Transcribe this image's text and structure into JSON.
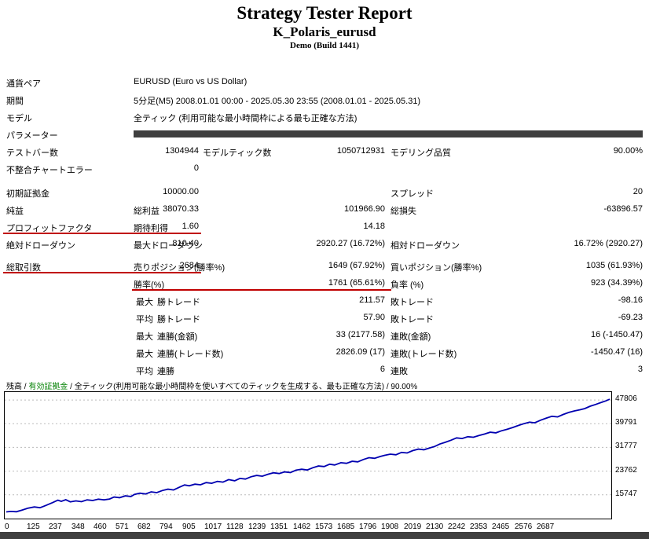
{
  "colors": {
    "underline": "#c00000",
    "balance_line": "#0000b0",
    "equity_legend": "#008000",
    "dark_bar": "#3f3f3f",
    "grid": "#bbbbbb"
  },
  "header": {
    "title": "Strategy Tester Report",
    "symbol": "K_Polaris_eurusd",
    "build": "Demo (Build 1441)"
  },
  "info": {
    "rows": [
      {
        "label": "通貨ペア",
        "value": "EURUSD (Euro vs US Dollar)"
      },
      {
        "label": "期間",
        "value": "5分足(M5) 2008.01.01 00:00 - 2025.05.30 23:55 (2008.01.01 - 2025.05.31)"
      },
      {
        "label": "モデル",
        "value": "全ティック (利用可能な最小時間枠による最も正確な方法)"
      },
      {
        "label": "パラメーター",
        "value": ""
      }
    ]
  },
  "stats": {
    "test_bars": {
      "label": "テストバー数",
      "value": "1304944"
    },
    "model_ticks": {
      "label": "モデルティック数",
      "value": "1050712931"
    },
    "modeling_quality": {
      "label": "モデリング品質",
      "value": "90.00%"
    },
    "mismatch_errors": {
      "label": "不整合チャートエラー",
      "value": "0"
    },
    "initial_deposit": {
      "label": "初期証拠金",
      "value": "10000.00"
    },
    "spread": {
      "label": "スプレッド",
      "value": "20"
    },
    "net_profit": {
      "label": "純益",
      "value": "38070.33"
    },
    "gross_profit": {
      "label": "総利益",
      "value": "101966.90"
    },
    "gross_loss": {
      "label": "総損失",
      "value": "-63896.57"
    },
    "profit_factor": {
      "label": "プロフィットファクタ",
      "value": "1.60"
    },
    "expected_payoff": {
      "label": "期待利得",
      "value": "14.18"
    },
    "absolute_drawdown": {
      "label": "絶対ドローダウン",
      "value": "810.40"
    },
    "maximal_drawdown": {
      "label": "最大ドローダウン",
      "value": "2920.27 (16.72%)"
    },
    "relative_drawdown": {
      "label": "相対ドローダウン",
      "value": "16.72% (2920.27)"
    },
    "total_trades": {
      "label": "総取引数",
      "value": "2684"
    },
    "short_positions": {
      "label": "売りポジション(勝率%)",
      "value": "1649 (67.92%)"
    },
    "long_positions": {
      "label": "買いポジション(勝率%)",
      "value": "1035 (61.93%)"
    },
    "profit_trades": {
      "label": "勝率(%)",
      "value": "1761 (65.61%)"
    },
    "loss_trades": {
      "label": "負率 (%)",
      "value": "923 (34.39%)"
    },
    "largest": {
      "label": "最大",
      "win_label": "勝トレード",
      "win": "211.57",
      "loss_label": "敗トレード",
      "loss": "-98.16"
    },
    "average": {
      "label": "平均",
      "win_label": "勝トレード",
      "win": "57.90",
      "loss_label": "敗トレード",
      "loss": "-69.23"
    },
    "max_consec_money": {
      "label": "最大",
      "win_label": "連勝(金額)",
      "win": "33 (2177.58)",
      "loss_label": "連敗(金額)",
      "loss": "16 (-1450.47)"
    },
    "max_consec_count": {
      "label": "最大",
      "win_label": "連勝(トレード数)",
      "win": "2826.09 (17)",
      "loss_label": "連敗(トレード数)",
      "loss": "-1450.47 (16)"
    },
    "avg_consec": {
      "label": "平均",
      "win_label": "連勝",
      "win": "6",
      "loss_label": "連敗",
      "loss": "3"
    }
  },
  "chart_data": {
    "type": "line",
    "legend": {
      "balance": "残高",
      "equity": "有効証拠金",
      "model": "全ティック(利用可能な最小時間枠を使いすべてのティックを生成する、最も正確な方法)",
      "quality": "90.00%",
      "separator": " / "
    },
    "y_ticks": [
      47806,
      39791,
      31777,
      23762,
      15747
    ],
    "x_ticks": [
      0,
      125,
      237,
      348,
      460,
      571,
      682,
      794,
      905,
      1017,
      1128,
      1239,
      1351,
      1462,
      1573,
      1685,
      1796,
      1908,
      2019,
      2130,
      2242,
      2353,
      2465,
      2576,
      2687
    ],
    "x_range": [
      0,
      2687
    ],
    "y_range": [
      7733,
      50478
    ],
    "grid": true,
    "legend_position": "top-left",
    "series": [
      {
        "name": "残高",
        "color": "#0000b0",
        "points": [
          [
            0,
            10000
          ],
          [
            20,
            10150
          ],
          [
            45,
            10050
          ],
          [
            70,
            10600
          ],
          [
            95,
            11200
          ],
          [
            125,
            11650
          ],
          [
            150,
            11400
          ],
          [
            175,
            12150
          ],
          [
            205,
            13100
          ],
          [
            230,
            13950
          ],
          [
            245,
            13550
          ],
          [
            265,
            14100
          ],
          [
            285,
            13400
          ],
          [
            310,
            13700
          ],
          [
            335,
            13450
          ],
          [
            360,
            14050
          ],
          [
            385,
            13850
          ],
          [
            410,
            14300
          ],
          [
            435,
            14050
          ],
          [
            460,
            14350
          ],
          [
            480,
            15000
          ],
          [
            505,
            14800
          ],
          [
            530,
            15400
          ],
          [
            555,
            15200
          ],
          [
            571,
            15900
          ],
          [
            595,
            16300
          ],
          [
            620,
            16050
          ],
          [
            645,
            16750
          ],
          [
            670,
            16500
          ],
          [
            695,
            17200
          ],
          [
            720,
            17650
          ],
          [
            745,
            17400
          ],
          [
            770,
            18300
          ],
          [
            794,
            19100
          ],
          [
            815,
            18800
          ],
          [
            840,
            19350
          ],
          [
            865,
            19150
          ],
          [
            890,
            19900
          ],
          [
            915,
            19650
          ],
          [
            940,
            20300
          ],
          [
            965,
            20050
          ],
          [
            990,
            20900
          ],
          [
            1017,
            20500
          ],
          [
            1040,
            21300
          ],
          [
            1065,
            21100
          ],
          [
            1090,
            21850
          ],
          [
            1115,
            22300
          ],
          [
            1140,
            22050
          ],
          [
            1165,
            22700
          ],
          [
            1190,
            23200
          ],
          [
            1215,
            22950
          ],
          [
            1239,
            23500
          ],
          [
            1265,
            23300
          ],
          [
            1290,
            24100
          ],
          [
            1315,
            24400
          ],
          [
            1340,
            24150
          ],
          [
            1365,
            24900
          ],
          [
            1390,
            25500
          ],
          [
            1415,
            25300
          ],
          [
            1440,
            26100
          ],
          [
            1462,
            25850
          ],
          [
            1490,
            26600
          ],
          [
            1515,
            26400
          ],
          [
            1540,
            27100
          ],
          [
            1565,
            26900
          ],
          [
            1590,
            27700
          ],
          [
            1615,
            28300
          ],
          [
            1640,
            28100
          ],
          [
            1665,
            28700
          ],
          [
            1685,
            29100
          ],
          [
            1710,
            29500
          ],
          [
            1735,
            29300
          ],
          [
            1760,
            30100
          ],
          [
            1785,
            29900
          ],
          [
            1810,
            30700
          ],
          [
            1835,
            31200
          ],
          [
            1860,
            31000
          ],
          [
            1885,
            31600
          ],
          [
            1908,
            32100
          ],
          [
            1930,
            32900
          ],
          [
            1955,
            33500
          ],
          [
            1980,
            34200
          ],
          [
            2005,
            35000
          ],
          [
            2030,
            34800
          ],
          [
            2055,
            35400
          ],
          [
            2080,
            35200
          ],
          [
            2105,
            35800
          ],
          [
            2130,
            36300
          ],
          [
            2155,
            36900
          ],
          [
            2180,
            36700
          ],
          [
            2205,
            37400
          ],
          [
            2230,
            37900
          ],
          [
            2255,
            38500
          ],
          [
            2280,
            39200
          ],
          [
            2305,
            39800
          ],
          [
            2330,
            40300
          ],
          [
            2353,
            40100
          ],
          [
            2380,
            41000
          ],
          [
            2405,
            41700
          ],
          [
            2430,
            42300
          ],
          [
            2455,
            42100
          ],
          [
            2480,
            42900
          ],
          [
            2505,
            43600
          ],
          [
            2530,
            44100
          ],
          [
            2555,
            44500
          ],
          [
            2576,
            44900
          ],
          [
            2600,
            45700
          ],
          [
            2625,
            46300
          ],
          [
            2650,
            47000
          ],
          [
            2670,
            47500
          ],
          [
            2687,
            48070
          ]
        ]
      }
    ]
  }
}
